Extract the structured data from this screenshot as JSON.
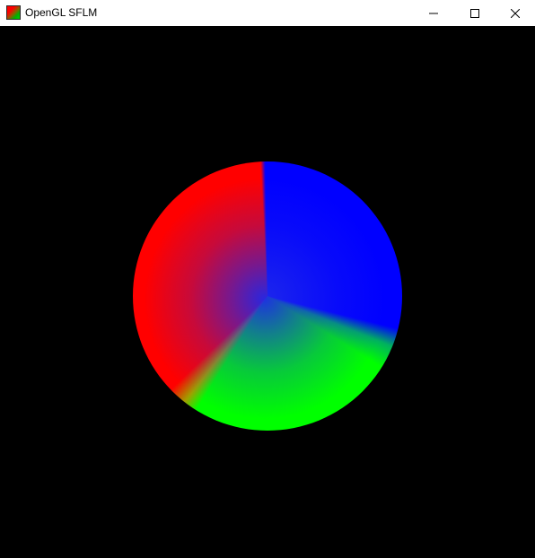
{
  "window": {
    "title": "OpenGL SFLM",
    "icon": "opengl-app-icon",
    "controls": {
      "minimize": "minimize-icon",
      "maximize": "maximize-icon",
      "close": "close-icon"
    }
  },
  "scene": {
    "background": "#000000",
    "shape": "triangle-fan disc",
    "segment_colors": [
      "#0000ff",
      "#00ff00",
      "#ff0000"
    ]
  }
}
